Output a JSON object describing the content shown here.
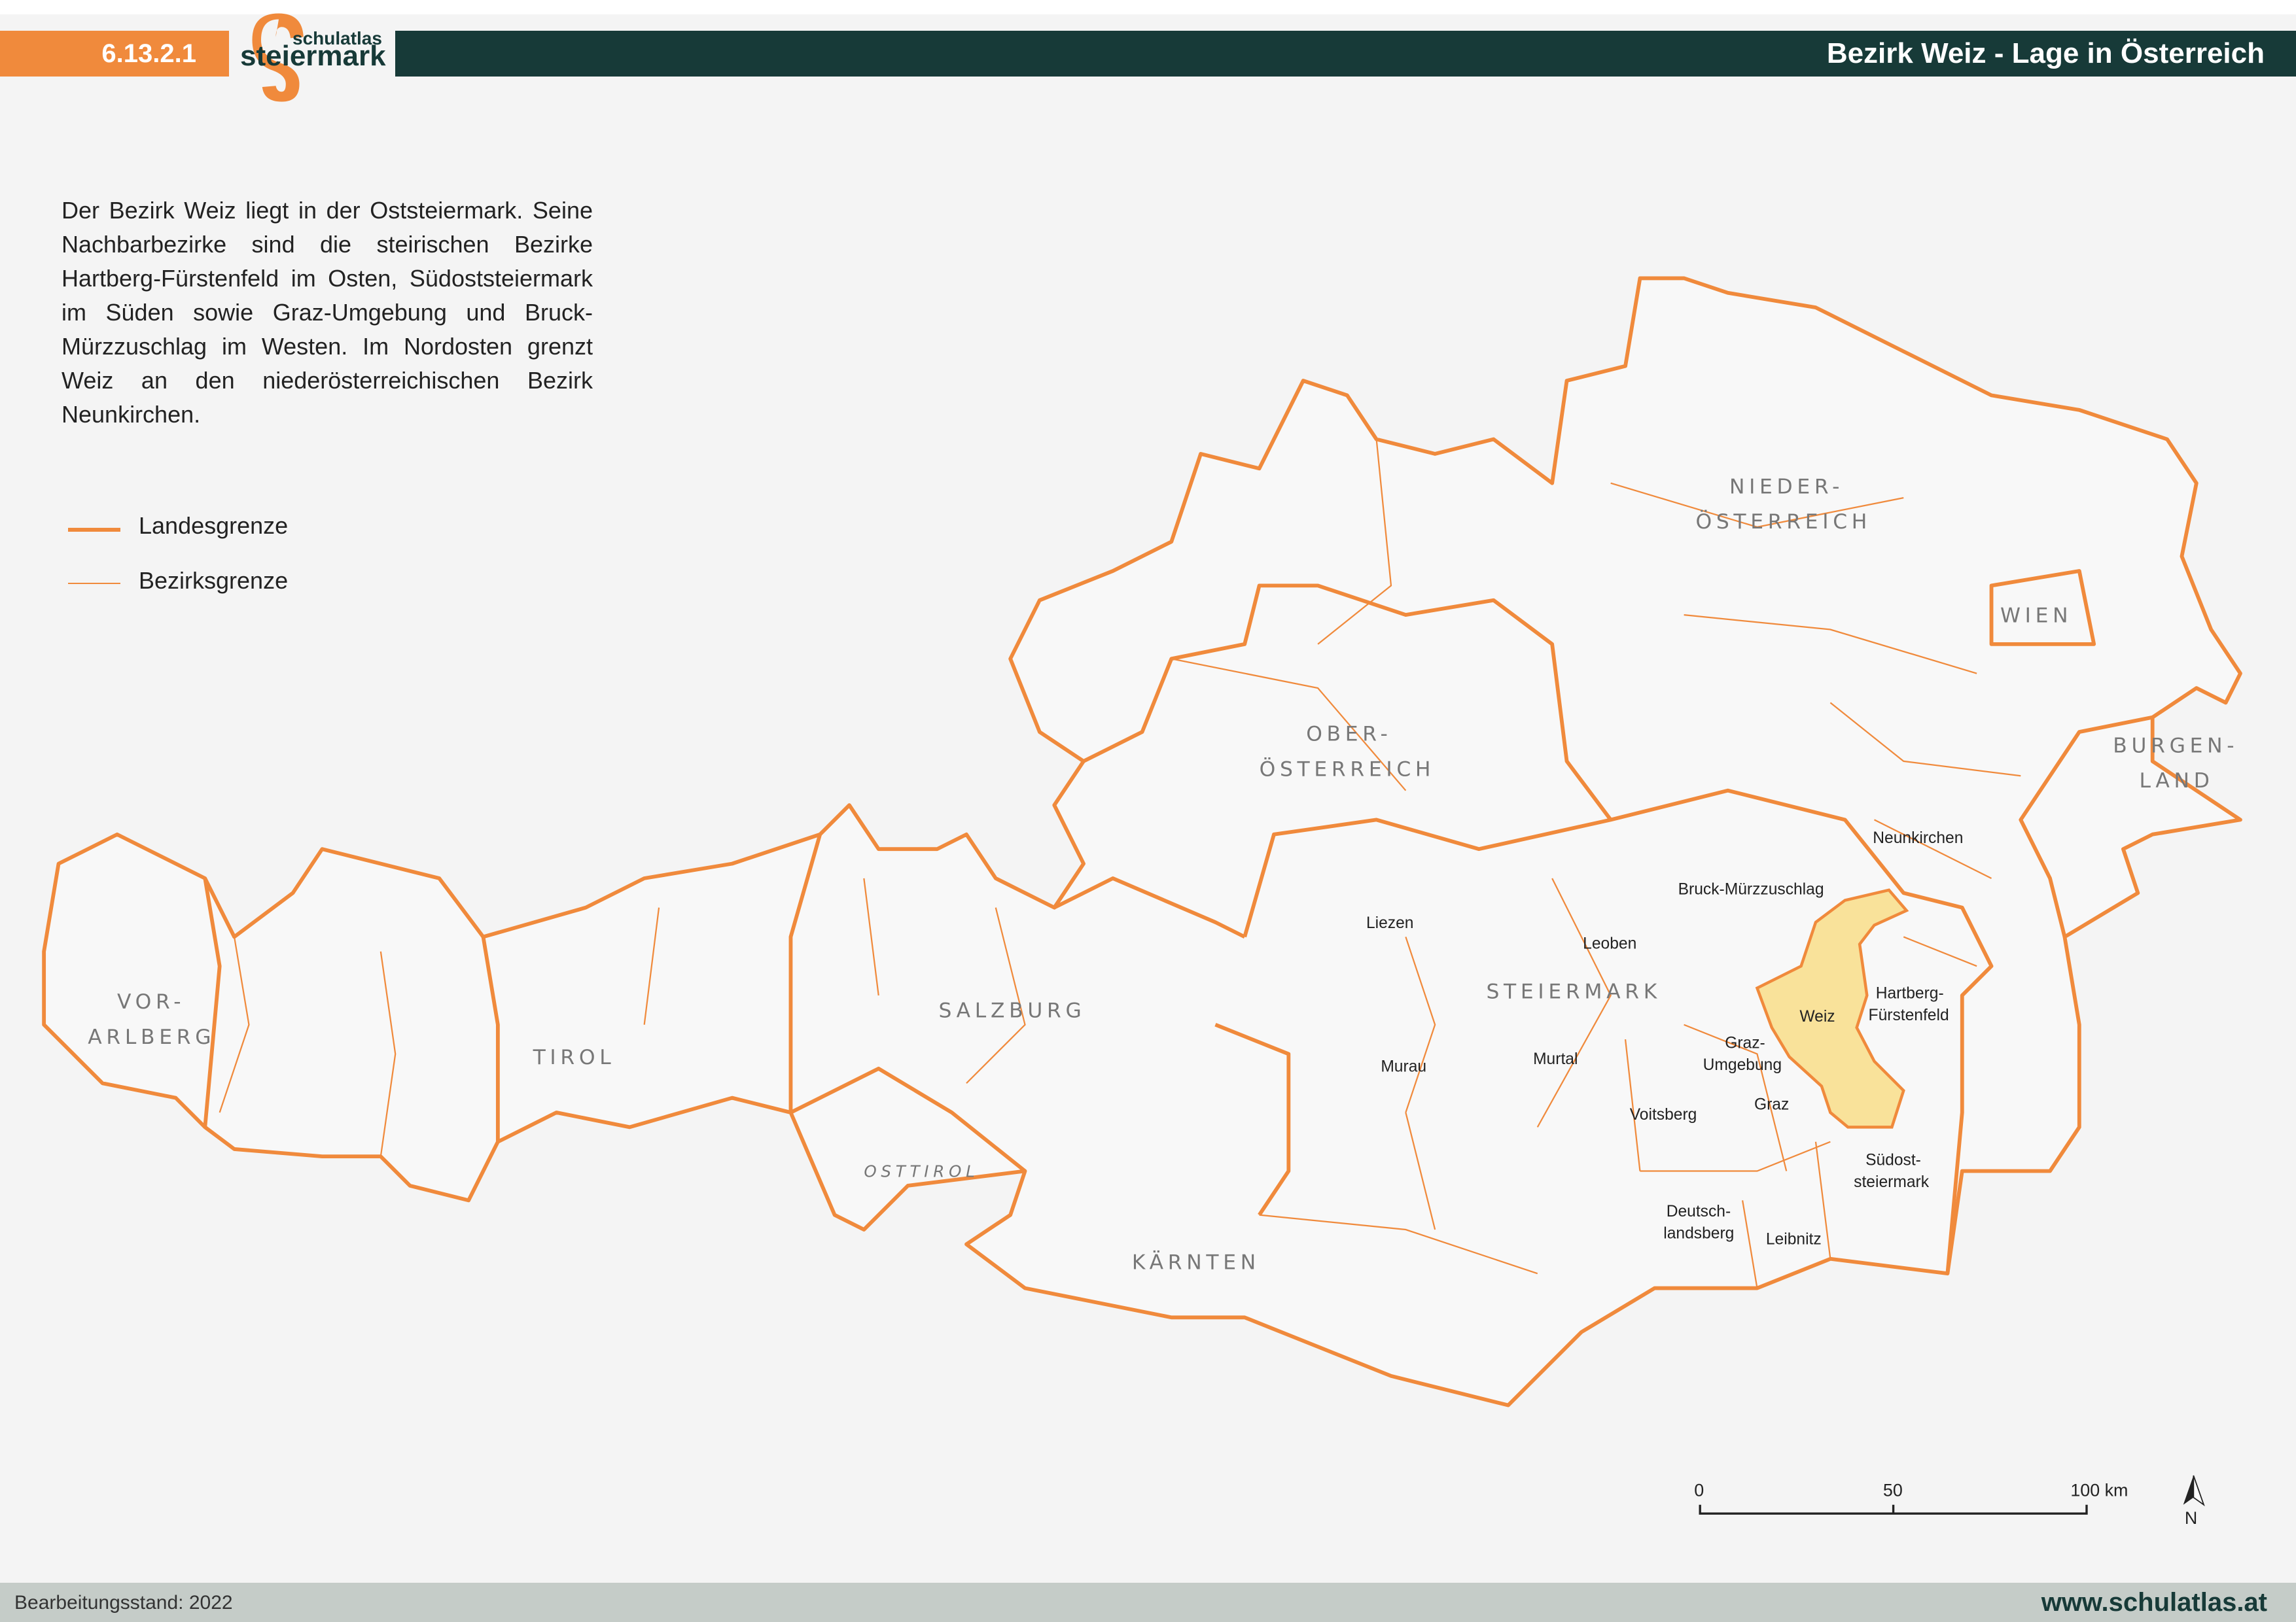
{
  "header": {
    "map_number": "6.13.2.1",
    "logo_text": "schulatlas steiermark",
    "title": "Bezirk Weiz - Lage in Österreich"
  },
  "intro_text": "Der Bezirk Weiz liegt in der Oststeiermark. Seine Nachbarbezirke sind die steirischen Bezirke Hartberg-Fürstenfeld im Osten, Südoststeiermark im Süden sowie Graz-Umgebung und Bruck-Mürzzuschlag im Westen. Im Nordosten grenzt Weiz an den niederösterreichischen Bezirk Neunkirchen.",
  "legend": [
    {
      "label": "Landesgrenze",
      "line": "thick"
    },
    {
      "label": "Bezirksgrenze",
      "line": "thin"
    }
  ],
  "colors": {
    "border": "#f08a3c",
    "highlight": "#f9e29a",
    "title_bar": "#173a38",
    "number_bar": "#f08a3c"
  },
  "map": {
    "states": {
      "vorarlberg_1": "VOR-",
      "vorarlberg_2": "ARLBERG",
      "tirol": "TIROL",
      "osttirol": "OSTTIROL",
      "salzburg": "SALZBURG",
      "kaernten": "KÄRNTEN",
      "steiermark": "STEIERMARK",
      "ooe_1": "OBER-",
      "ooe_2": "ÖSTERREICH",
      "noe_1": "NIEDER-",
      "noe_2": "ÖSTERREICH",
      "wien": "WIEN",
      "bgld_1": "BURGEN-",
      "bgld_2": "LAND"
    },
    "districts": {
      "liezen": "Liezen",
      "murau": "Murau",
      "murtal": "Murtal",
      "leoben": "Leoben",
      "bruck": "Bruck-Mürzzuschlag",
      "neunkirchen": "Neunkirchen",
      "weiz": "Weiz",
      "hf_1": "Hartberg-",
      "hf_2": "Fürstenfeld",
      "gu_1": "Graz-",
      "gu_2": "Umgebung",
      "graz": "Graz",
      "voitsberg": "Voitsberg",
      "dl_1": "Deutsch-",
      "dl_2": "landsberg",
      "leibnitz": "Leibnitz",
      "so_1": "Südost-",
      "so_2": "steiermark"
    },
    "highlighted_district": "Weiz"
  },
  "scale_bar": {
    "ticks": [
      "0",
      "50",
      "100 km"
    ]
  },
  "north_arrow": "N",
  "footer": {
    "stand": "Bearbeitungsstand: 2022",
    "url": "www.schulatlas.at"
  }
}
